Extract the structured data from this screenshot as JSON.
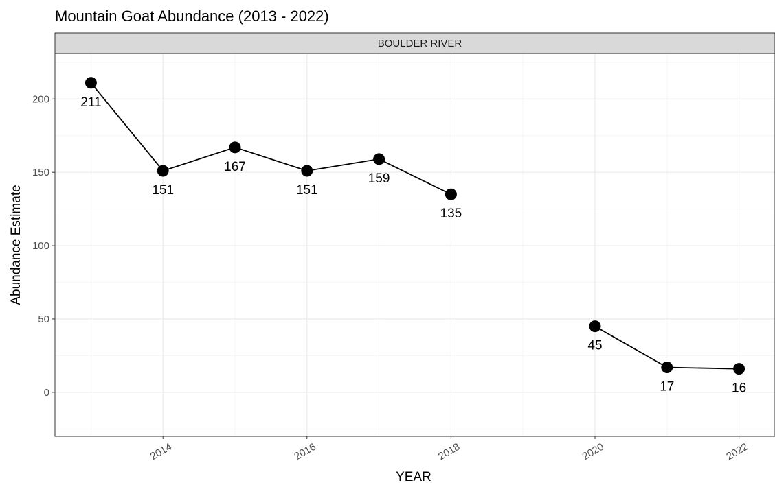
{
  "chart_data": {
    "type": "line",
    "title": "Mountain Goat Abundance (2013 - 2022)",
    "facet_label": "BOULDER RIVER",
    "xlabel": "YEAR",
    "ylabel": "Abundance Estimate",
    "xlim": [
      2012.5,
      2022.5
    ],
    "ylim": [
      -30,
      231
    ],
    "x_ticks": [
      2014,
      2016,
      2018,
      2020,
      2022
    ],
    "y_ticks": [
      0,
      50,
      100,
      150,
      200
    ],
    "grid": true,
    "series": [
      {
        "segments": [
          {
            "x": [
              2013,
              2014,
              2015,
              2016,
              2017,
              2018
            ],
            "y": [
              211,
              151,
              167,
              151,
              159,
              135
            ]
          },
          {
            "x": [
              2020,
              2021,
              2022
            ],
            "y": [
              45,
              17,
              16
            ]
          }
        ]
      }
    ],
    "points": [
      {
        "x": 2013,
        "y": 211,
        "label": "211"
      },
      {
        "x": 2014,
        "y": 151,
        "label": "151"
      },
      {
        "x": 2015,
        "y": 167,
        "label": "167"
      },
      {
        "x": 2016,
        "y": 151,
        "label": "151"
      },
      {
        "x": 2017,
        "y": 159,
        "label": "159"
      },
      {
        "x": 2018,
        "y": 135,
        "label": "135"
      },
      {
        "x": 2020,
        "y": 45,
        "label": "45"
      },
      {
        "x": 2021,
        "y": 17,
        "label": "17"
      },
      {
        "x": 2022,
        "y": 16,
        "label": "16"
      }
    ],
    "colors": {
      "points": "#000000",
      "line": "#000000",
      "grid_major": "#ebebeb",
      "grid_minor": "#f5f5f5",
      "strip_fill": "#d9d9d9",
      "panel_border": "#333333"
    }
  }
}
